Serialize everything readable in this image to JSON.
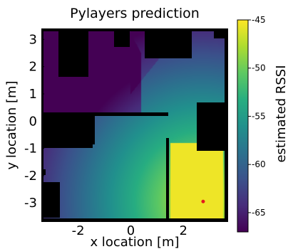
{
  "chart_data": {
    "type": "heatmap",
    "title": "Pylayers prediction",
    "xlabel": "x location [m]",
    "ylabel": "y location [m]",
    "xlim": [
      -3.4,
      3.7
    ],
    "ylim": [
      -3.7,
      3.4
    ],
    "x_ticks": [
      -2,
      0,
      2
    ],
    "x_tick_labels": [
      "-2",
      "0",
      "2"
    ],
    "y_ticks": [
      -3,
      -2,
      -1,
      0,
      1,
      2,
      3
    ],
    "y_tick_labels": [
      "-3",
      "-2",
      "-1",
      "0",
      "1",
      "2",
      "3"
    ],
    "colorbar": {
      "label": "estimated RSSI",
      "range": [
        -67,
        -45
      ],
      "ticks": [
        -45,
        -50,
        -55,
        -60,
        -65
      ],
      "tick_labels": [
        "-45",
        "-50",
        "-55",
        "-60",
        "-65"
      ],
      "colormap": "viridis"
    },
    "source_point": {
      "x": 2.75,
      "y": -2.95,
      "color": "#e31a1c"
    },
    "blocked_color": "#000000"
  }
}
